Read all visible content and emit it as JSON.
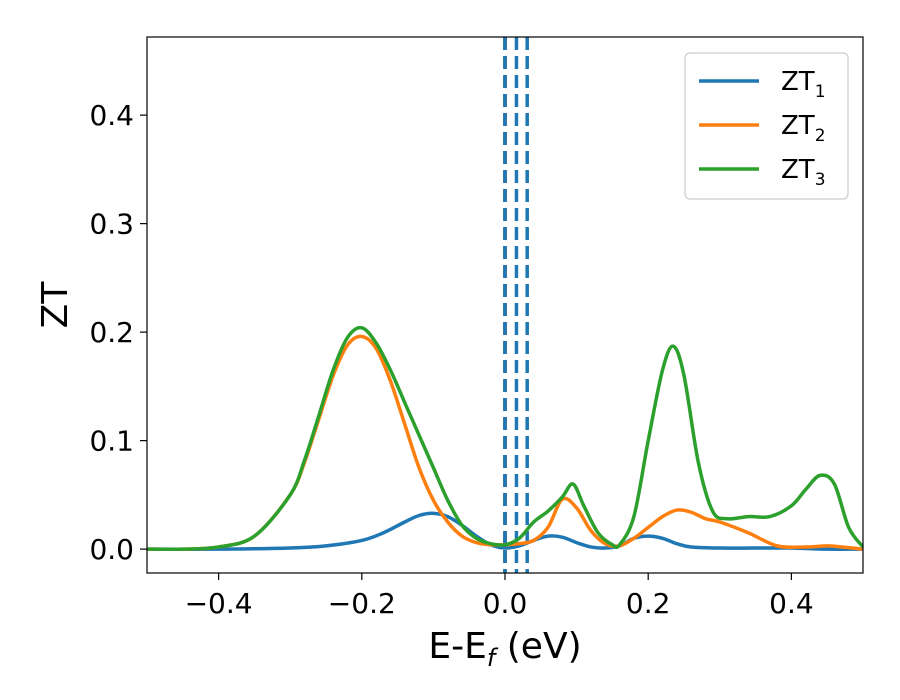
{
  "chart_data": {
    "type": "line",
    "xlabel": {
      "main": "E-E",
      "sub": "f",
      "suffix": " (eV)"
    },
    "ylabel": "ZT",
    "xlim": [
      -0.5,
      0.5
    ],
    "ylim": [
      -0.022,
      0.472
    ],
    "xticks": [
      {
        "value": -0.4,
        "label": "−0.4"
      },
      {
        "value": -0.2,
        "label": "−0.2"
      },
      {
        "value": 0.0,
        "label": "0.0"
      },
      {
        "value": 0.2,
        "label": "0.2"
      },
      {
        "value": 0.4,
        "label": "0.4"
      }
    ],
    "yticks": [
      {
        "value": 0.0,
        "label": "0.0"
      },
      {
        "value": 0.1,
        "label": "0.1"
      },
      {
        "value": 0.2,
        "label": "0.2"
      },
      {
        "value": 0.3,
        "label": "0.3"
      },
      {
        "value": 0.4,
        "label": "0.4"
      }
    ],
    "grid": false,
    "legend_position": "top-right",
    "series": [
      {
        "name": "ZT",
        "sub": "1",
        "color": "#1f77b4",
        "x": [
          -0.5,
          -0.4,
          -0.3,
          -0.25,
          -0.2,
          -0.17,
          -0.14,
          -0.12,
          -0.1,
          -0.08,
          -0.06,
          -0.04,
          -0.02,
          0.0,
          0.02,
          0.04,
          0.06,
          0.08,
          0.1,
          0.12,
          0.14,
          0.16,
          0.18,
          0.2,
          0.22,
          0.24,
          0.26,
          0.3,
          0.35,
          0.4,
          0.45,
          0.5
        ],
        "y": [
          0.0,
          0.0,
          0.001,
          0.003,
          0.008,
          0.015,
          0.025,
          0.031,
          0.033,
          0.03,
          0.022,
          0.012,
          0.004,
          0.001,
          0.003,
          0.008,
          0.012,
          0.011,
          0.006,
          0.002,
          0.001,
          0.003,
          0.01,
          0.012,
          0.01,
          0.005,
          0.002,
          0.001,
          0.001,
          0.001,
          0.0,
          0.0
        ]
      },
      {
        "name": "ZT",
        "sub": "2",
        "color": "#ff7f0e",
        "x": [
          -0.5,
          -0.45,
          -0.4,
          -0.35,
          -0.3,
          -0.28,
          -0.26,
          -0.24,
          -0.22,
          -0.2,
          -0.18,
          -0.16,
          -0.14,
          -0.12,
          -0.1,
          -0.08,
          -0.06,
          -0.04,
          -0.02,
          0.0,
          0.02,
          0.04,
          0.06,
          0.08,
          0.1,
          0.12,
          0.14,
          0.16,
          0.18,
          0.2,
          0.22,
          0.24,
          0.26,
          0.28,
          0.3,
          0.34,
          0.38,
          0.42,
          0.45,
          0.47,
          0.5
        ],
        "y": [
          0.0,
          0.0,
          0.002,
          0.012,
          0.05,
          0.08,
          0.12,
          0.16,
          0.188,
          0.196,
          0.185,
          0.155,
          0.115,
          0.075,
          0.045,
          0.025,
          0.012,
          0.006,
          0.004,
          0.004,
          0.005,
          0.008,
          0.02,
          0.046,
          0.038,
          0.017,
          0.005,
          0.003,
          0.01,
          0.02,
          0.03,
          0.036,
          0.034,
          0.028,
          0.025,
          0.015,
          0.003,
          0.002,
          0.003,
          0.002,
          0.0
        ]
      },
      {
        "name": "ZT",
        "sub": "3",
        "color": "#2ca02c",
        "x": [
          -0.5,
          -0.45,
          -0.4,
          -0.35,
          -0.3,
          -0.28,
          -0.26,
          -0.24,
          -0.22,
          -0.2,
          -0.18,
          -0.16,
          -0.14,
          -0.12,
          -0.1,
          -0.08,
          -0.06,
          -0.04,
          -0.02,
          0.0,
          0.02,
          0.04,
          0.06,
          0.08,
          0.095,
          0.11,
          0.13,
          0.15,
          0.16,
          0.18,
          0.2,
          0.22,
          0.235,
          0.25,
          0.27,
          0.29,
          0.31,
          0.34,
          0.37,
          0.4,
          0.42,
          0.44,
          0.46,
          0.48,
          0.5
        ],
        "y": [
          0.0,
          0.0,
          0.002,
          0.012,
          0.05,
          0.082,
          0.123,
          0.165,
          0.195,
          0.204,
          0.19,
          0.165,
          0.135,
          0.105,
          0.075,
          0.045,
          0.022,
          0.01,
          0.005,
          0.004,
          0.01,
          0.025,
          0.035,
          0.048,
          0.06,
          0.04,
          0.015,
          0.004,
          0.004,
          0.03,
          0.1,
          0.165,
          0.187,
          0.16,
          0.08,
          0.035,
          0.028,
          0.03,
          0.03,
          0.04,
          0.055,
          0.068,
          0.06,
          0.02,
          0.002
        ]
      }
    ],
    "reference_lines": [
      {
        "x": 0.0,
        "color": "#000000",
        "style": "dashed"
      },
      {
        "x": 0.0,
        "color": "#1f77b4",
        "style": "dashed"
      },
      {
        "x": 0.016,
        "color": "#1f77b4",
        "style": "dashed"
      },
      {
        "x": 0.031,
        "color": "#1f77b4",
        "style": "dashed"
      }
    ]
  }
}
